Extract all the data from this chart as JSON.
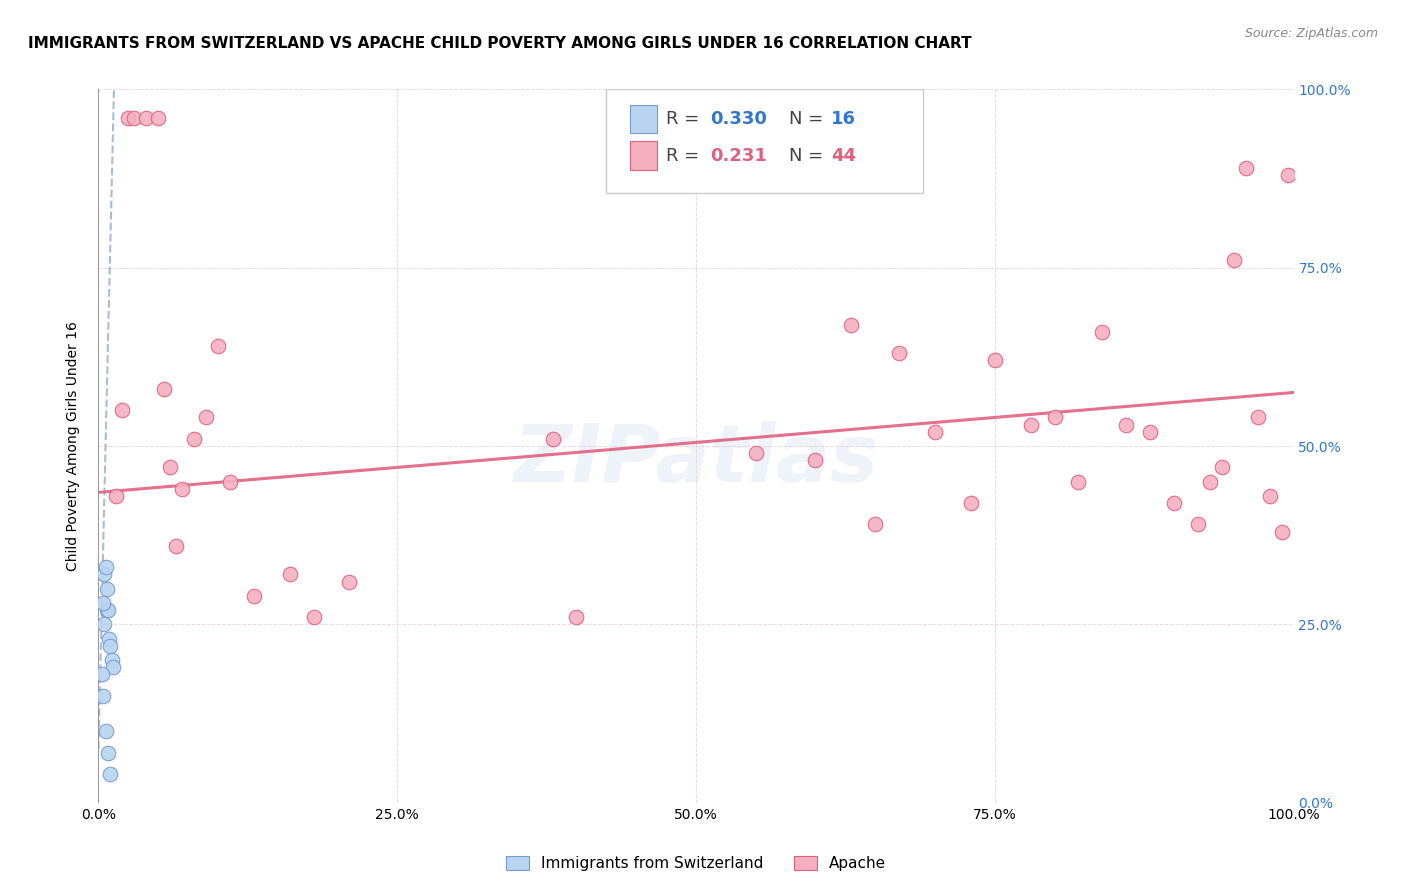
{
  "title": "IMMIGRANTS FROM SWITZERLAND VS APACHE CHILD POVERTY AMONG GIRLS UNDER 16 CORRELATION CHART",
  "source": "Source: ZipAtlas.com",
  "ylabel": "Child Poverty Among Girls Under 16",
  "xlim": [
    0,
    1
  ],
  "ylim": [
    0,
    1
  ],
  "xticks": [
    0.0,
    0.25,
    0.5,
    0.75,
    1.0
  ],
  "yticks": [
    0.0,
    0.25,
    0.5,
    0.75,
    1.0
  ],
  "xticklabels": [
    "0.0%",
    "25.0%",
    "50.0%",
    "75.0%",
    "100.0%"
  ],
  "right_yticklabels": [
    "0.0%",
    "25.0%",
    "50.0%",
    "75.0%",
    "100.0%"
  ],
  "watermark": "ZIPatlas",
  "blue_color": "#b8d4f0",
  "pink_color": "#f5b0c0",
  "blue_line_color": "#7799cc",
  "pink_line_color": "#e06080",
  "swiss_scatter_x": [
    0.005,
    0.007,
    0.007,
    0.008,
    0.009,
    0.01,
    0.011,
    0.012,
    0.003,
    0.004,
    0.004,
    0.005,
    0.006,
    0.006,
    0.008,
    0.01
  ],
  "swiss_scatter_y": [
    0.32,
    0.3,
    0.27,
    0.27,
    0.23,
    0.22,
    0.2,
    0.19,
    0.18,
    0.15,
    0.28,
    0.25,
    0.33,
    0.1,
    0.07,
    0.04
  ],
  "apache_scatter_x": [
    0.015,
    0.02,
    0.025,
    0.03,
    0.04,
    0.05,
    0.055,
    0.06,
    0.065,
    0.07,
    0.08,
    0.09,
    0.1,
    0.11,
    0.13,
    0.16,
    0.18,
    0.21,
    0.38,
    0.4,
    0.55,
    0.6,
    0.63,
    0.65,
    0.67,
    0.7,
    0.73,
    0.75,
    0.78,
    0.8,
    0.82,
    0.84,
    0.86,
    0.88,
    0.9,
    0.92,
    0.93,
    0.94,
    0.95,
    0.96,
    0.97,
    0.98,
    0.99,
    0.995
  ],
  "apache_scatter_y": [
    0.43,
    0.55,
    0.96,
    0.96,
    0.96,
    0.96,
    0.58,
    0.47,
    0.36,
    0.44,
    0.51,
    0.54,
    0.64,
    0.45,
    0.29,
    0.32,
    0.26,
    0.31,
    0.51,
    0.26,
    0.49,
    0.48,
    0.67,
    0.39,
    0.63,
    0.52,
    0.42,
    0.62,
    0.53,
    0.54,
    0.45,
    0.66,
    0.53,
    0.52,
    0.42,
    0.39,
    0.45,
    0.47,
    0.76,
    0.89,
    0.54,
    0.43,
    0.38,
    0.88
  ],
  "blue_trend_x": [
    0.0,
    0.013
  ],
  "blue_trend_y": [
    0.075,
    1.0
  ],
  "pink_trend_x": [
    0.0,
    1.0
  ],
  "pink_trend_y": [
    0.435,
    0.575
  ],
  "title_fontsize": 11,
  "axis_label_fontsize": 10,
  "tick_fontsize": 10,
  "legend_fontsize": 14
}
